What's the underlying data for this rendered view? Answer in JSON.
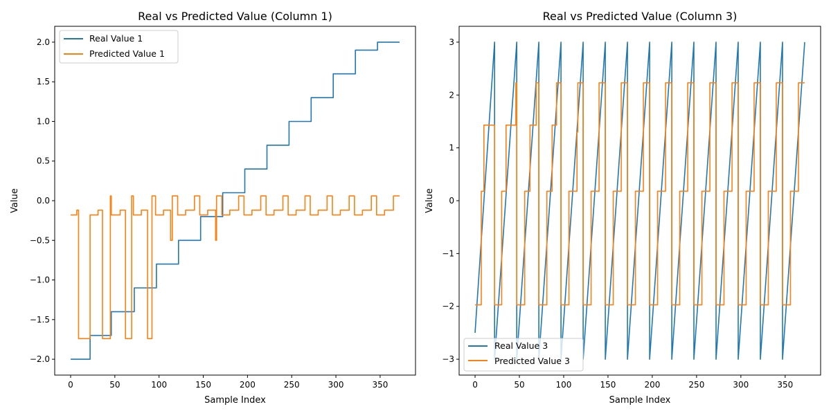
{
  "chart_data": [
    {
      "type": "line",
      "title": "Real vs Predicted Value (Column 1)",
      "xlabel": "Sample Index",
      "ylabel": "Value",
      "xlim": [
        -18,
        390
      ],
      "ylim": [
        -2.2,
        2.2
      ],
      "xticks": [
        0,
        50,
        100,
        150,
        200,
        250,
        300,
        350
      ],
      "yticks": [
        -2.0,
        -1.5,
        -1.0,
        -0.5,
        0.0,
        0.5,
        1.0,
        1.5,
        2.0
      ],
      "ytick_labels": [
        "−2.0",
        "−1.5",
        "−1.0",
        "−0.5",
        "0.0",
        "0.5",
        "1.0",
        "1.5",
        "2.0"
      ],
      "legend_position": "upper-left",
      "grid": false,
      "series": [
        {
          "name": "Real Value 1",
          "color": "#1f77b4",
          "points": [
            [
              0,
              -2.0
            ],
            [
              22,
              -2.0
            ],
            [
              22,
              -1.7
            ],
            [
              46,
              -1.7
            ],
            [
              46,
              -1.4
            ],
            [
              72,
              -1.4
            ],
            [
              72,
              -1.1
            ],
            [
              97,
              -1.1
            ],
            [
              97,
              -0.8
            ],
            [
              122,
              -0.8
            ],
            [
              122,
              -0.5
            ],
            [
              147,
              -0.5
            ],
            [
              147,
              -0.2
            ],
            [
              172,
              -0.2
            ],
            [
              172,
              0.1
            ],
            [
              197,
              0.1
            ],
            [
              197,
              0.4
            ],
            [
              222,
              0.4
            ],
            [
              222,
              0.7
            ],
            [
              247,
              0.7
            ],
            [
              247,
              1.0
            ],
            [
              272,
              1.0
            ],
            [
              272,
              1.3
            ],
            [
              297,
              1.3
            ],
            [
              297,
              1.6
            ],
            [
              322,
              1.6
            ],
            [
              322,
              1.9
            ],
            [
              347,
              1.9
            ],
            [
              347,
              2.0
            ],
            [
              372,
              2.0
            ]
          ]
        },
        {
          "name": "Predicted Value 1",
          "color": "#ff7f0e",
          "points": [
            [
              0,
              -0.18
            ],
            [
              7,
              -0.18
            ],
            [
              7,
              -0.12
            ],
            [
              9,
              -0.12
            ],
            [
              9,
              -1.74
            ],
            [
              22,
              -1.74
            ],
            [
              22,
              -0.18
            ],
            [
              31,
              -0.18
            ],
            [
              31,
              -0.12
            ],
            [
              36,
              -0.12
            ],
            [
              36,
              -1.74
            ],
            [
              45,
              -1.74
            ],
            [
              45,
              0.06
            ],
            [
              46,
              0.06
            ],
            [
              46,
              -0.18
            ],
            [
              56,
              -0.18
            ],
            [
              56,
              -0.12
            ],
            [
              62,
              -0.12
            ],
            [
              62,
              -1.74
            ],
            [
              69,
              -1.74
            ],
            [
              69,
              0.06
            ],
            [
              71,
              0.06
            ],
            [
              71,
              -0.18
            ],
            [
              80,
              -0.18
            ],
            [
              80,
              -0.12
            ],
            [
              87,
              -0.12
            ],
            [
              87,
              -1.74
            ],
            [
              92,
              -1.74
            ],
            [
              92,
              0.06
            ],
            [
              96,
              0.06
            ],
            [
              96,
              -0.18
            ],
            [
              105,
              -0.18
            ],
            [
              105,
              -0.12
            ],
            [
              113,
              -0.12
            ],
            [
              113,
              -0.5
            ],
            [
              115,
              -0.5
            ],
            [
              115,
              0.06
            ],
            [
              121,
              0.06
            ],
            [
              121,
              -0.18
            ],
            [
              130,
              -0.18
            ],
            [
              130,
              -0.12
            ],
            [
              140,
              -0.12
            ],
            [
              140,
              0.06
            ],
            [
              146,
              0.06
            ],
            [
              146,
              -0.18
            ],
            [
              155,
              -0.18
            ],
            [
              155,
              -0.12
            ],
            [
              164,
              -0.12
            ],
            [
              164,
              -0.5
            ],
            [
              165,
              -0.5
            ],
            [
              165,
              0.06
            ],
            [
              171,
              0.06
            ],
            [
              171,
              -0.18
            ],
            [
              180,
              -0.18
            ],
            [
              180,
              -0.12
            ],
            [
              190,
              -0.12
            ],
            [
              190,
              0.06
            ],
            [
              196,
              0.06
            ],
            [
              196,
              -0.18
            ],
            [
              205,
              -0.18
            ],
            [
              205,
              -0.12
            ],
            [
              215,
              -0.12
            ],
            [
              215,
              0.06
            ],
            [
              221,
              0.06
            ],
            [
              221,
              -0.18
            ],
            [
              230,
              -0.18
            ],
            [
              230,
              -0.12
            ],
            [
              240,
              -0.12
            ],
            [
              240,
              0.06
            ],
            [
              246,
              0.06
            ],
            [
              246,
              -0.18
            ],
            [
              255,
              -0.18
            ],
            [
              255,
              -0.12
            ],
            [
              265,
              -0.12
            ],
            [
              265,
              0.06
            ],
            [
              271,
              0.06
            ],
            [
              271,
              -0.18
            ],
            [
              280,
              -0.18
            ],
            [
              280,
              -0.12
            ],
            [
              290,
              -0.12
            ],
            [
              290,
              0.06
            ],
            [
              296,
              0.06
            ],
            [
              296,
              -0.18
            ],
            [
              305,
              -0.18
            ],
            [
              305,
              -0.12
            ],
            [
              315,
              -0.12
            ],
            [
              315,
              0.06
            ],
            [
              321,
              0.06
            ],
            [
              321,
              -0.18
            ],
            [
              330,
              -0.18
            ],
            [
              330,
              -0.12
            ],
            [
              340,
              -0.12
            ],
            [
              340,
              0.06
            ],
            [
              346,
              0.06
            ],
            [
              346,
              -0.18
            ],
            [
              355,
              -0.18
            ],
            [
              355,
              -0.12
            ],
            [
              365,
              -0.12
            ],
            [
              365,
              0.06
            ],
            [
              372,
              0.06
            ]
          ]
        }
      ]
    },
    {
      "type": "line",
      "title": "Real vs Predicted Value (Column 3)",
      "xlabel": "Sample Index",
      "ylabel": "Value",
      "xlim": [
        -18,
        390
      ],
      "ylim": [
        -3.3,
        3.3
      ],
      "xticks": [
        0,
        50,
        100,
        150,
        200,
        250,
        300,
        350
      ],
      "yticks": [
        -3,
        -2,
        -1,
        0,
        1,
        2,
        3
      ],
      "ytick_labels": [
        "−3",
        "−2",
        "−1",
        "0",
        "1",
        "2",
        "3"
      ],
      "legend_position": "lower-left",
      "grid": false,
      "series": [
        {
          "name": "Real Value 3",
          "color": "#1f77b4",
          "points": [
            [
              0,
              -2.5
            ],
            [
              22,
              3.0
            ],
            [
              22,
              -3.0
            ],
            [
              47,
              3.0
            ],
            [
              47,
              -3.0
            ],
            [
              72,
              3.0
            ],
            [
              72,
              -3.0
            ],
            [
              97,
              3.0
            ],
            [
              97,
              -3.0
            ],
            [
              122,
              3.0
            ],
            [
              122,
              -3.0
            ],
            [
              147,
              3.0
            ],
            [
              147,
              -3.0
            ],
            [
              172,
              3.0
            ],
            [
              172,
              -3.0
            ],
            [
              197,
              3.0
            ],
            [
              197,
              -3.0
            ],
            [
              222,
              3.0
            ],
            [
              222,
              -3.0
            ],
            [
              247,
              3.0
            ],
            [
              247,
              -3.0
            ],
            [
              272,
              3.0
            ],
            [
              272,
              -3.0
            ],
            [
              297,
              3.0
            ],
            [
              297,
              -3.0
            ],
            [
              322,
              3.0
            ],
            [
              322,
              -3.0
            ],
            [
              347,
              3.0
            ],
            [
              347,
              -3.0
            ],
            [
              372,
              3.0
            ]
          ]
        },
        {
          "name": "Predicted Value 3",
          "color": "#ff7f0e",
          "points": [
            [
              0,
              -1.97
            ],
            [
              7,
              -1.97
            ],
            [
              7,
              0.18
            ],
            [
              10,
              0.18
            ],
            [
              10,
              1.43
            ],
            [
              22,
              1.43
            ],
            [
              22,
              -1.97
            ],
            [
              30,
              -1.97
            ],
            [
              30,
              0.18
            ],
            [
              35,
              0.18
            ],
            [
              35,
              1.43
            ],
            [
              46,
              1.43
            ],
            [
              46,
              2.23
            ],
            [
              47,
              2.23
            ],
            [
              47,
              -1.97
            ],
            [
              56,
              -1.97
            ],
            [
              56,
              0.18
            ],
            [
              62,
              0.18
            ],
            [
              62,
              1.43
            ],
            [
              69,
              1.43
            ],
            [
              69,
              2.23
            ],
            [
              72,
              2.23
            ],
            [
              72,
              -1.97
            ],
            [
              81,
              -1.97
            ],
            [
              81,
              0.18
            ],
            [
              87,
              0.18
            ],
            [
              87,
              1.43
            ],
            [
              92,
              1.43
            ],
            [
              92,
              2.23
            ],
            [
              97,
              2.23
            ],
            [
              97,
              -1.97
            ],
            [
              106,
              -1.97
            ],
            [
              106,
              0.18
            ],
            [
              115,
              0.18
            ],
            [
              115,
              1.3
            ],
            [
              116,
              1.3
            ],
            [
              116,
              2.23
            ],
            [
              122,
              2.23
            ],
            [
              122,
              -1.97
            ],
            [
              131,
              -1.97
            ],
            [
              131,
              0.18
            ],
            [
              140,
              0.18
            ],
            [
              140,
              2.23
            ],
            [
              147,
              2.23
            ],
            [
              147,
              -1.97
            ],
            [
              156,
              -1.97
            ],
            [
              156,
              0.18
            ],
            [
              165,
              0.18
            ],
            [
              165,
              2.23
            ],
            [
              172,
              2.23
            ],
            [
              172,
              -1.97
            ],
            [
              181,
              -1.97
            ],
            [
              181,
              0.18
            ],
            [
              190,
              0.18
            ],
            [
              190,
              2.23
            ],
            [
              197,
              2.23
            ],
            [
              197,
              -1.97
            ],
            [
              206,
              -1.97
            ],
            [
              206,
              0.18
            ],
            [
              215,
              0.18
            ],
            [
              215,
              2.23
            ],
            [
              222,
              2.23
            ],
            [
              222,
              -1.97
            ],
            [
              231,
              -1.97
            ],
            [
              231,
              0.18
            ],
            [
              240,
              0.18
            ],
            [
              240,
              2.23
            ],
            [
              247,
              2.23
            ],
            [
              247,
              -1.97
            ],
            [
              256,
              -1.97
            ],
            [
              256,
              0.18
            ],
            [
              265,
              0.18
            ],
            [
              265,
              2.23
            ],
            [
              272,
              2.23
            ],
            [
              272,
              -1.97
            ],
            [
              281,
              -1.97
            ],
            [
              281,
              0.18
            ],
            [
              290,
              0.18
            ],
            [
              290,
              2.23
            ],
            [
              297,
              2.23
            ],
            [
              297,
              -1.97
            ],
            [
              306,
              -1.97
            ],
            [
              306,
              0.18
            ],
            [
              315,
              0.18
            ],
            [
              315,
              2.23
            ],
            [
              322,
              2.23
            ],
            [
              322,
              -1.97
            ],
            [
              331,
              -1.97
            ],
            [
              331,
              0.18
            ],
            [
              340,
              0.18
            ],
            [
              340,
              2.23
            ],
            [
              347,
              2.23
            ],
            [
              347,
              -1.97
            ],
            [
              356,
              -1.97
            ],
            [
              356,
              0.18
            ],
            [
              365,
              0.18
            ],
            [
              365,
              2.23
            ],
            [
              372,
              2.23
            ]
          ]
        }
      ]
    }
  ]
}
